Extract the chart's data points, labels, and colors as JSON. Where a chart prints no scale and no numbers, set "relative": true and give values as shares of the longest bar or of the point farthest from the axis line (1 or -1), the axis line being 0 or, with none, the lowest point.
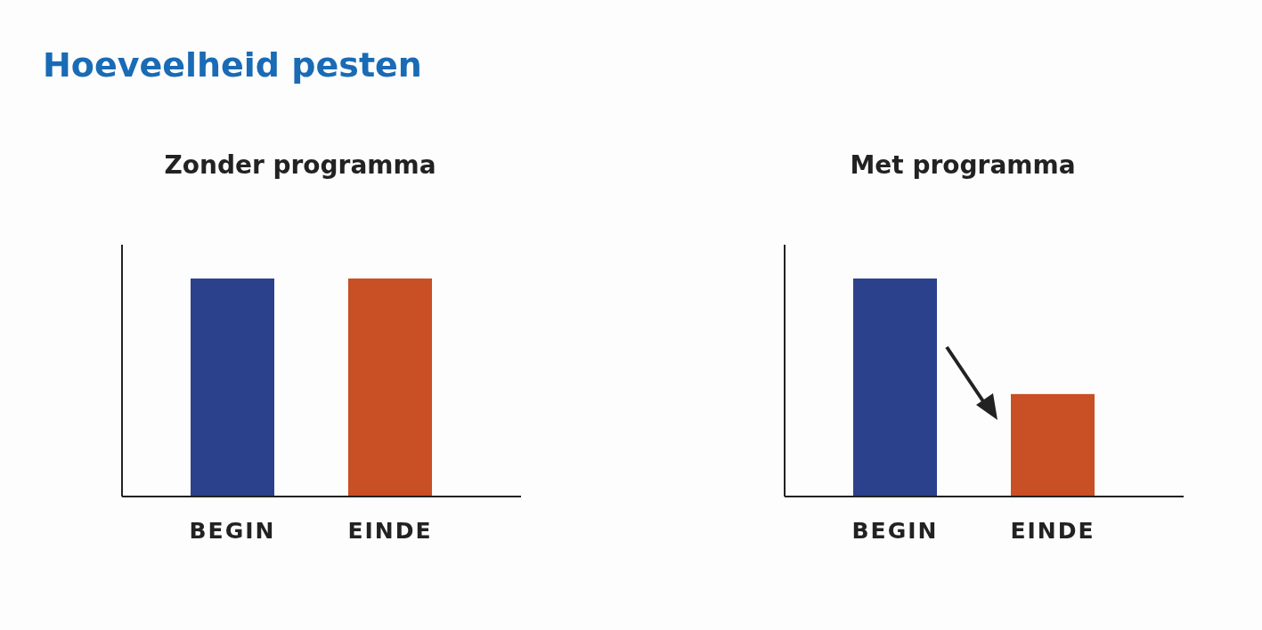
{
  "chart_data": [
    {
      "type": "bar",
      "title": "Hoeveelheid pesten",
      "subtitle": "Zonder programma",
      "categories": [
        "BEGIN",
        "EINDE"
      ],
      "values": [
        1,
        1
      ],
      "colors": [
        "#2c418c",
        "#c94f24"
      ],
      "relative": true
    },
    {
      "type": "bar",
      "subtitle": "Met programma",
      "categories": [
        "BEGIN",
        "EINDE"
      ],
      "values": [
        1,
        0.47
      ],
      "colors": [
        "#2c418c",
        "#c94f24"
      ],
      "relative": true
    }
  ]
}
